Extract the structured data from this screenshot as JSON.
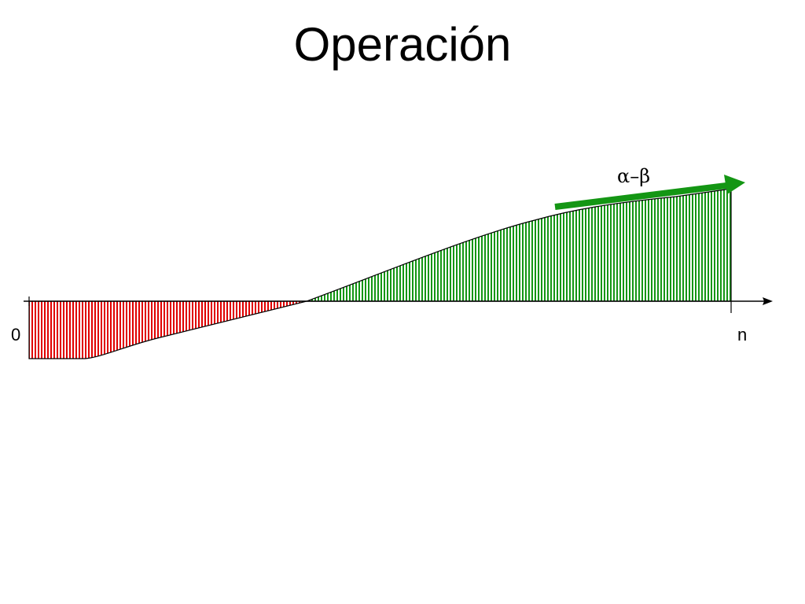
{
  "slide": {
    "title": "Operación"
  },
  "diagram": {
    "axis": {
      "origin_label": "0",
      "end_label": "n"
    },
    "arrow": {
      "label": "α–β"
    },
    "colors": {
      "negative_fill": "#e00000",
      "positive_fill": "#149614",
      "outline": "#000000",
      "arrow": "#149614"
    }
  }
}
